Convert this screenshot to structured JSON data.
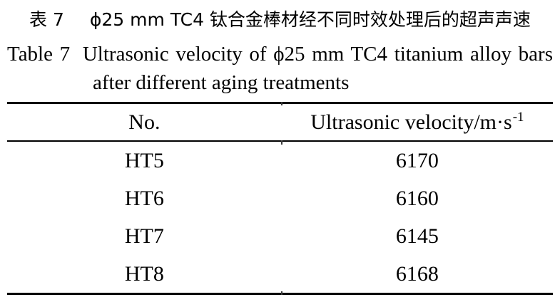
{
  "colors": {
    "background": "#ffffff",
    "text": "#000000",
    "rule": "#000000"
  },
  "caption_zh": {
    "label": "表 7",
    "text": "ϕ25 mm TC4 钛合金棒材经不同时效处理后的超声声速"
  },
  "caption_en": {
    "label": "Table 7",
    "line1_text": "Ultrasonic velocity of ϕ25 mm TC4 titanium alloy bars",
    "line2_text": "after different aging treatments"
  },
  "table": {
    "header": {
      "col1": "No.",
      "col2_base": "Ultrasonic velocity/m·s",
      "col2_sup": "-1"
    },
    "rows": [
      {
        "no": "HT5",
        "velocity": "6170"
      },
      {
        "no": "HT6",
        "velocity": "6160"
      },
      {
        "no": "HT7",
        "velocity": "6145"
      },
      {
        "no": "HT8",
        "velocity": "6168"
      }
    ]
  }
}
